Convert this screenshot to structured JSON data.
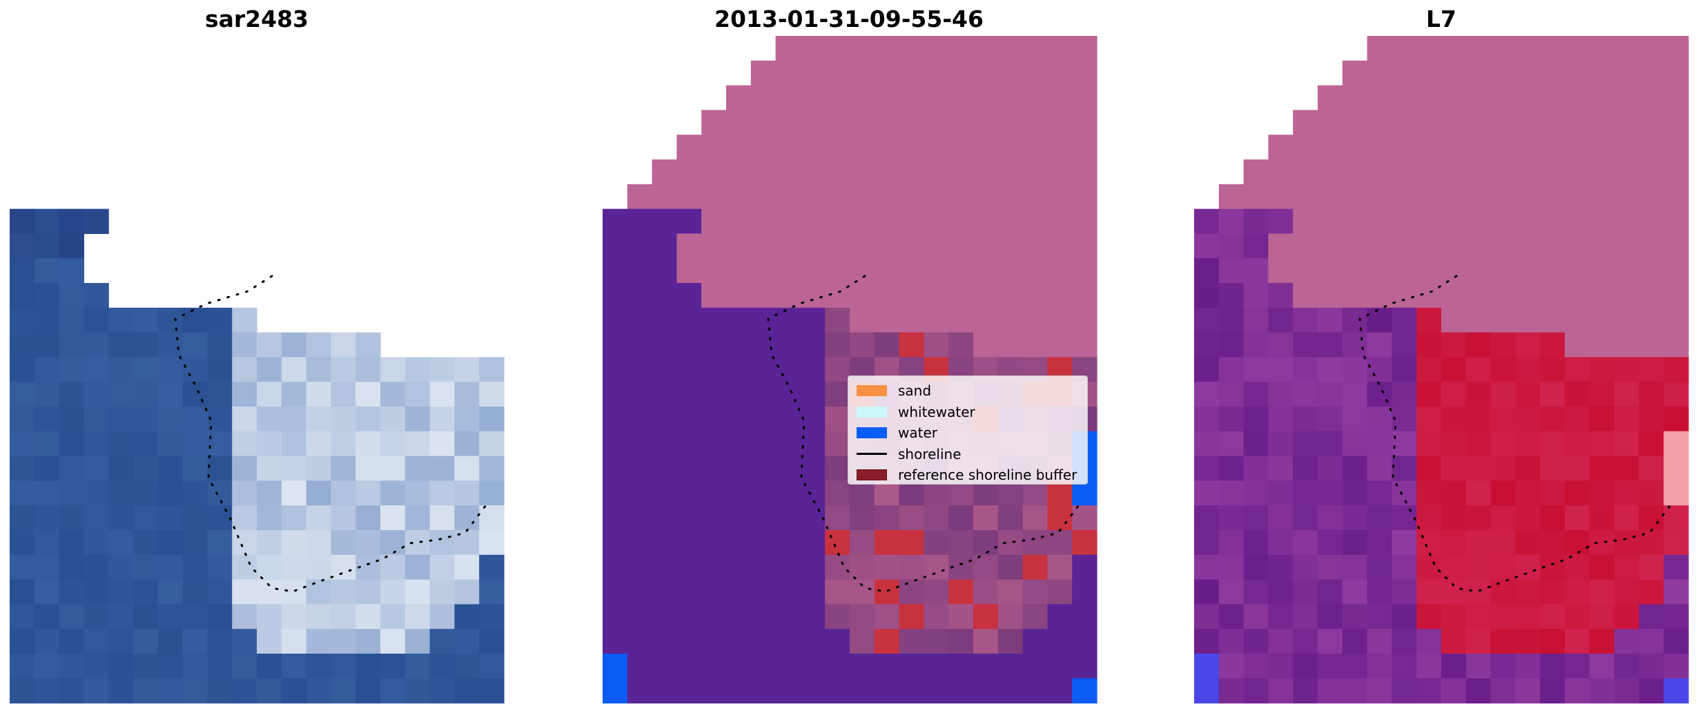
{
  "panels": [
    {
      "title": "sar2483"
    },
    {
      "title": "2013-01-31-09-55-46"
    },
    {
      "title": "L7"
    }
  ],
  "legend": {
    "items": [
      {
        "label": "sand",
        "color": "#f98f42",
        "kind": "patch"
      },
      {
        "label": "whitewater",
        "color": "#cdf8fb",
        "kind": "patch"
      },
      {
        "label": "water",
        "color": "#0b5cf5",
        "kind": "patch"
      },
      {
        "label": "shoreline",
        "color": "#000000",
        "kind": "line"
      },
      {
        "label": "reference shoreline buffer",
        "color": "#8b1e2a",
        "kind": "patch"
      }
    ]
  },
  "colors": {
    "sea_rgb": "#2a4f92",
    "foam_rgb": "#dfe6f2",
    "class_water": "#5a2496",
    "class_land_nodata": "#bc6495",
    "buffer_red": "#c8323f",
    "water_blue": "#0b5cf5",
    "index_purple": "#7a1f8f",
    "index_red": "#c80f33"
  }
}
